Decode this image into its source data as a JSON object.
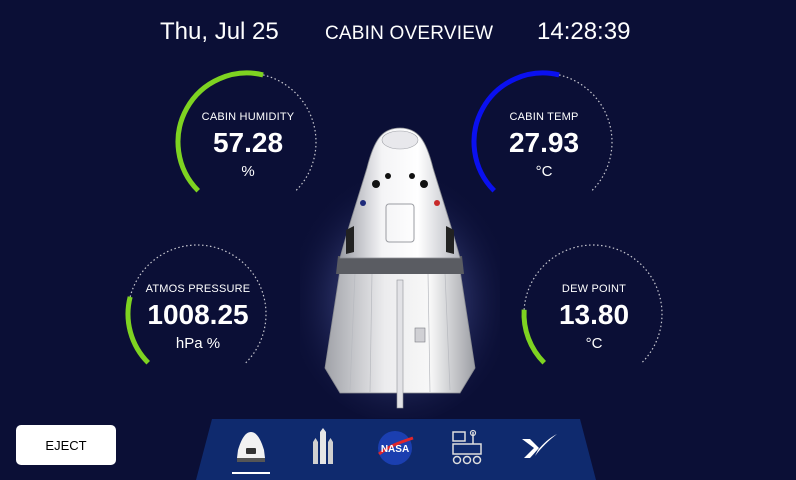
{
  "header": {
    "date": "Thu, Jul 25",
    "title": "CABIN OVERVIEW",
    "time": "14:28:39"
  },
  "gauges": {
    "humidity": {
      "label": "CABIN HUMIDITY",
      "value": "57.28",
      "unit": "%",
      "fraction": 0.55,
      "color": "#7ed321"
    },
    "temp": {
      "label": "CABIN TEMP",
      "value": "27.93",
      "unit": "°C",
      "fraction": 0.55,
      "color": "#0a10f0"
    },
    "pressure": {
      "label": "ATMOS PRESSURE",
      "value": "1008.25",
      "unit": "hPa %",
      "fraction": 0.22,
      "color": "#7ed321"
    },
    "dewpoint": {
      "label": "DEW POINT",
      "value": "13.80",
      "unit": "°C",
      "fraction": 0.18,
      "color": "#7ed321"
    }
  },
  "eject_label": "EJECT",
  "dock": {
    "icons": [
      "dragon-capsule-icon",
      "falcon-rocket-icon",
      "nasa-logo-icon",
      "rover-icon",
      "spacex-x-icon"
    ],
    "active": "dragon-capsule-icon",
    "nasa_text": "NASA"
  },
  "colors": {
    "background": "#0b0f36",
    "dock": "#0f2a6e",
    "green": "#7ed321",
    "blue": "#0a10f0"
  }
}
